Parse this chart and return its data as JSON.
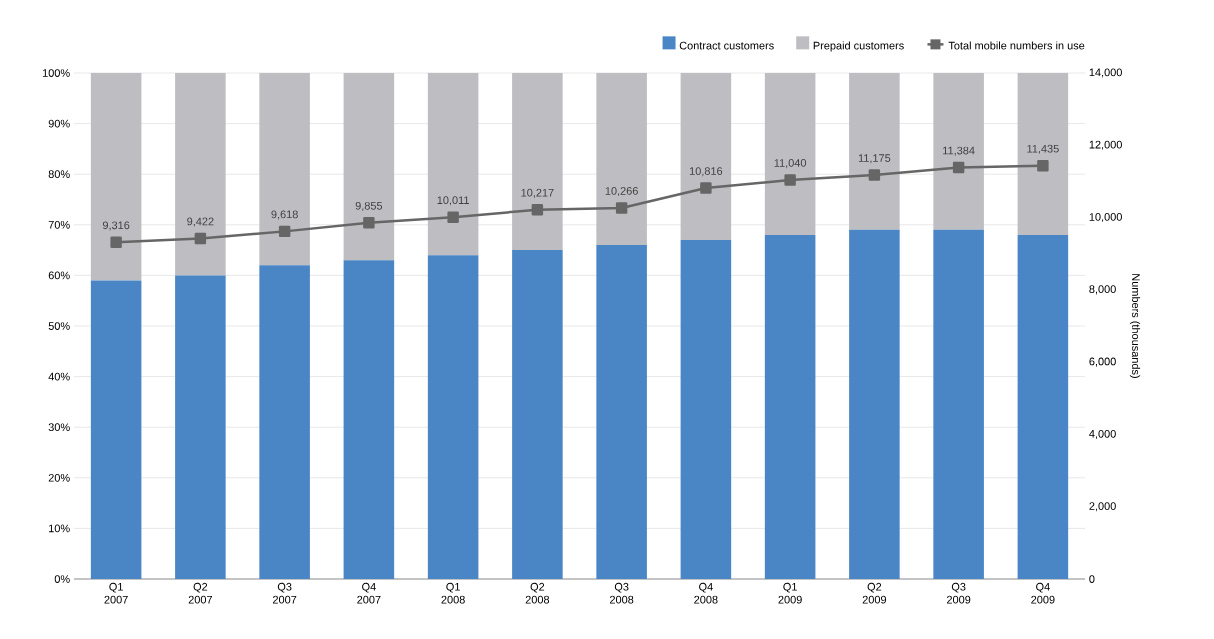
{
  "chart_data": {
    "type": "bar",
    "stacked": true,
    "categories": [
      "Q1 2007",
      "Q2 2007",
      "Q3 2007",
      "Q4 2007",
      "Q1 2008",
      "Q2 2008",
      "Q3 2008",
      "Q4 2008",
      "Q1 2009",
      "Q2 2009",
      "Q3 2009",
      "Q4 2009"
    ],
    "series": [
      {
        "name": "Contract customers",
        "color": "#4a86c5",
        "values": [
          59,
          60,
          62,
          63,
          64,
          65,
          66,
          67,
          68,
          69,
          69,
          68
        ]
      },
      {
        "name": "Prepaid customers",
        "color": "#bdbdc2",
        "values": [
          41,
          40,
          38,
          37,
          36,
          35,
          34,
          33,
          32,
          31,
          31,
          32
        ]
      },
      {
        "name": "Total mobile numbers in use",
        "type": "line",
        "axis": "y2",
        "color": "#666666",
        "marker": "square",
        "values": [
          9316,
          9422,
          9618,
          9855,
          10011,
          10217,
          10266,
          10816,
          11040,
          11175,
          11384,
          11435
        ],
        "value_labels": [
          "9,316",
          "9,422",
          "9,618",
          "9,855",
          "10,011",
          "10,217",
          "10,266",
          "10,816",
          "11,040",
          "11,175",
          "11,384",
          "11,435"
        ]
      }
    ],
    "ylim": [
      0,
      100
    ],
    "yticks": [
      {
        "value": 0,
        "label": "0%"
      },
      {
        "value": 10,
        "label": "10%"
      },
      {
        "value": 20,
        "label": "20%"
      },
      {
        "value": 30,
        "label": "30%"
      },
      {
        "value": 40,
        "label": "40%"
      },
      {
        "value": 50,
        "label": "50%"
      },
      {
        "value": 60,
        "label": "60%"
      },
      {
        "value": 70,
        "label": "70%"
      },
      {
        "value": 80,
        "label": "80%"
      },
      {
        "value": 90,
        "label": "90%"
      },
      {
        "value": 100,
        "label": "100%"
      }
    ],
    "y2lim": [
      0,
      14000
    ],
    "y2ticks": [
      0,
      {
        "value": 2000,
        "label": "2,000"
      },
      {
        "value": 4000,
        "label": "4,000"
      },
      {
        "value": 6000,
        "label": "6,000"
      },
      {
        "value": 8000,
        "label": "8,000"
      },
      {
        "value": 10000,
        "label": "10,000"
      },
      {
        "value": 12000,
        "label": "12,000"
      },
      {
        "value": 14000,
        "label": "14,000"
      }
    ],
    "y2label": "Numbers (thousands)",
    "grid": "y",
    "legend": "top right"
  }
}
